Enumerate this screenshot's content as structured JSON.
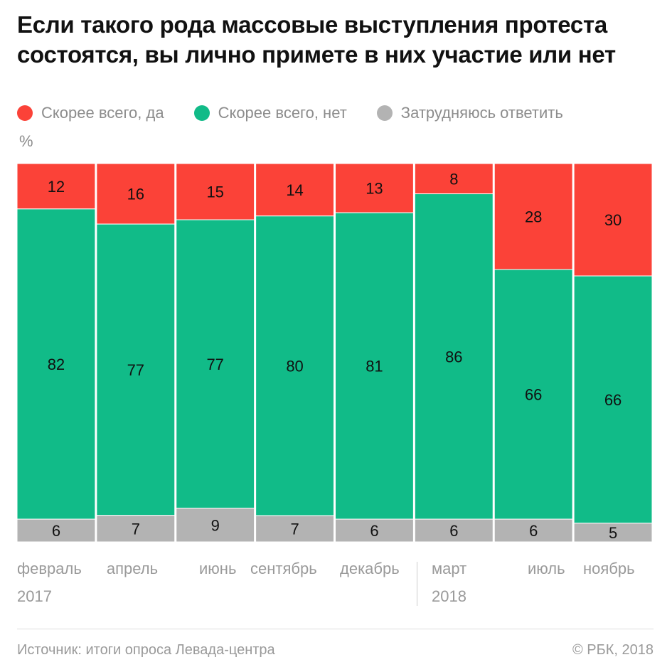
{
  "chart_data": {
    "type": "bar",
    "stacked": true,
    "normalized": true,
    "title": "Если такого рода массовые выступления протеста состоятся, вы лично примете в них участие или нет",
    "ylabel": "%",
    "categories": [
      "февраль",
      "апрель",
      "июнь",
      "сентябрь",
      "декабрь",
      "март",
      "июль",
      "ноябрь"
    ],
    "year_labels": [
      {
        "label": "2017",
        "start_index": 0
      },
      {
        "label": "2018",
        "start_index": 5
      }
    ],
    "series": [
      {
        "name": "Скорее всего, да",
        "color": "#fb4238",
        "values": [
          12,
          16,
          15,
          14,
          13,
          8,
          28,
          30
        ]
      },
      {
        "name": "Скорее всего, нет",
        "color": "#11bb88",
        "values": [
          82,
          77,
          77,
          80,
          81,
          86,
          66,
          66
        ]
      },
      {
        "name": "Затрудняюсь ответить",
        "color": "#b3b3b3",
        "values": [
          6,
          7,
          9,
          7,
          6,
          6,
          6,
          5
        ]
      }
    ],
    "legend": "top-left"
  },
  "footer": {
    "source": "Источник: итоги опроса Левада-центра",
    "copyright": "© РБК, 2018"
  }
}
